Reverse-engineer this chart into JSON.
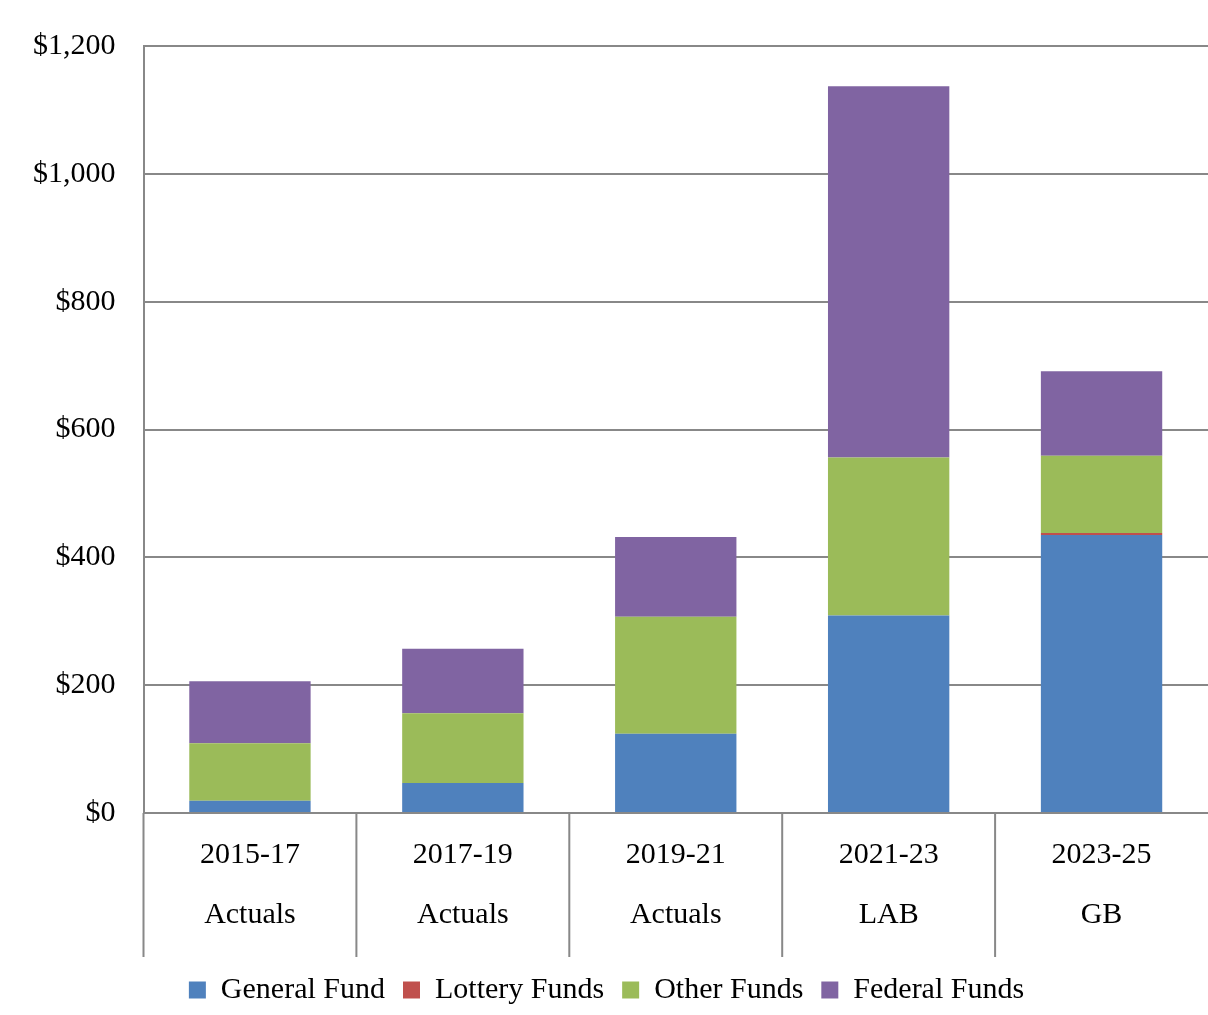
{
  "chart_data": {
    "type": "bar",
    "stacked": true,
    "categories": [
      "2015-17\nActuals",
      "2017-19\nActuals",
      "2019-21\nActuals",
      "2021-23\nLAB",
      "2023-25\nGB"
    ],
    "series": [
      {
        "name": "General Fund",
        "color": "#4f81bd",
        "values": [
          19,
          47,
          124,
          309,
          435
        ]
      },
      {
        "name": "Lottery Funds",
        "color": "#c0504d",
        "values": [
          0,
          0,
          0,
          0,
          3
        ]
      },
      {
        "name": "Other Funds",
        "color": "#9bbb59",
        "values": [
          90,
          109,
          183,
          247,
          121
        ]
      },
      {
        "name": "Federal Funds",
        "color": "#8064a2",
        "values": [
          97,
          101,
          125,
          581,
          132
        ]
      }
    ],
    "ylim": [
      0,
      1200
    ],
    "yticks": [
      {
        "value": 0,
        "label": "$0"
      },
      {
        "value": 200,
        "label": "$200"
      },
      {
        "value": 400,
        "label": "$400"
      },
      {
        "value": 600,
        "label": "$600"
      },
      {
        "value": 800,
        "label": "$800"
      },
      {
        "value": 1000,
        "label": "$1,000"
      },
      {
        "value": 1200,
        "label": "$1,200"
      }
    ],
    "grid": "y",
    "legend": "bottom"
  }
}
